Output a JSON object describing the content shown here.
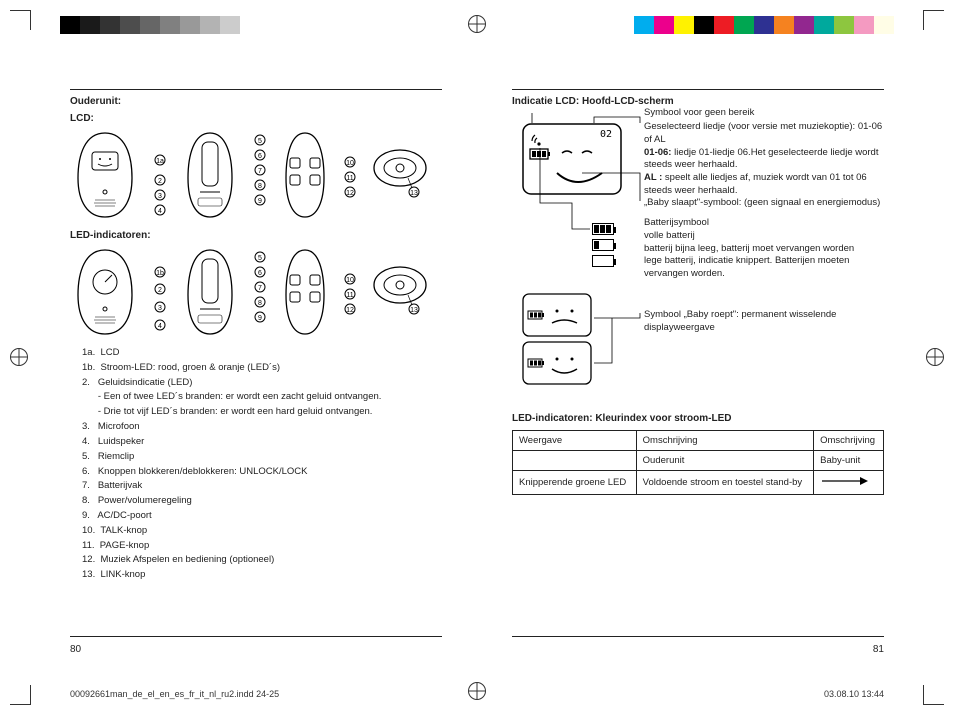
{
  "left": {
    "heading1": "Ouderunit:",
    "heading2": "LCD:",
    "heading3": "LED-indicatoren:",
    "listItems": [
      "1a.  LCD",
      "1b.  Stroom-LED: rood, groen & oranje (LED´s)",
      "2.   Geluidsindicatie (LED)",
      "      - Een of twee LED´s branden: er wordt een zacht geluid ontvangen.",
      "      - Drie tot vijf LED´s branden: er wordt een hard geluid ontvangen.",
      "3.   Microfoon",
      "4.   Luidspeker",
      "5.   Riemclip",
      "6.   Knoppen blokkeren/deblokkeren: UNLOCK/LOCK",
      "7.   Batterijvak",
      "8.   Power/volumeregeling",
      "9.   AC/DC-poort",
      "10.  TALK-knop",
      "11.  PAGE-knop",
      "12.  Muziek Afspelen en bediening (optioneel)",
      "13.  LINK-knop"
    ],
    "pageNum": "80"
  },
  "right": {
    "heading1": "Indicatie LCD: Hoofd-LCD-scherm",
    "callouts": {
      "nobereik": "Symbool voor geen bereik",
      "liedIntro": "Geselecteerd liedje (voor versie met muziekoptie): 01-06 of AL",
      "lied0106a": "01-06:",
      "lied0106b": " liedje 01-liedje 06.Het geselecteerde liedje wordt steeds weer herhaald.",
      "alA": "AL :",
      "alB": " speelt alle liedjes af, muziek wordt van 01 tot 06 steeds weer herhaald.",
      "slaap": "„Baby slaapt\"-symbool: (geen signaal en energiemodus)",
      "battHeader": "Batterijsymbool",
      "battFull": "volle batterij",
      "battLow": "batterij bijna leeg, batterij moet vervangen worden",
      "battEmpty": "lege batterij, indicatie knippert. Batterijen moeten vervangen worden.",
      "roept": "Symbool „Baby roept\": permanent wisselende displayweergave"
    },
    "tableHeading": "LED-indicatoren: Kleurindex voor stroom-LED",
    "table": {
      "h1": "Weergave",
      "h2": "Omschrijving",
      "h3": "Omschrijving",
      "r1c2": "Ouderunit",
      "r1c3": "Baby-unit",
      "r2c1": "Knipperende groene LED",
      "r2c2": "Voldoende stroom en toestel stand-by"
    },
    "pageNum": "81"
  },
  "slugLeft": "00092661man_de_el_en_es_fr_it_nl_ru2.indd   24-25",
  "slugRight": "03.08.10   13:44",
  "colorBars": {
    "grays": [
      "#000000",
      "#1a1a1a",
      "#333333",
      "#4d4d4d",
      "#666666",
      "#808080",
      "#999999",
      "#b3b3b3",
      "#cccccc"
    ],
    "colors": [
      "#00adee",
      "#ec008c",
      "#fff200",
      "#000000",
      "#ed1c24",
      "#00a651",
      "#2e3192",
      "#f58220",
      "#92278f",
      "#00a99d",
      "#8dc63f",
      "#f49ac1",
      "#fffde6"
    ]
  }
}
